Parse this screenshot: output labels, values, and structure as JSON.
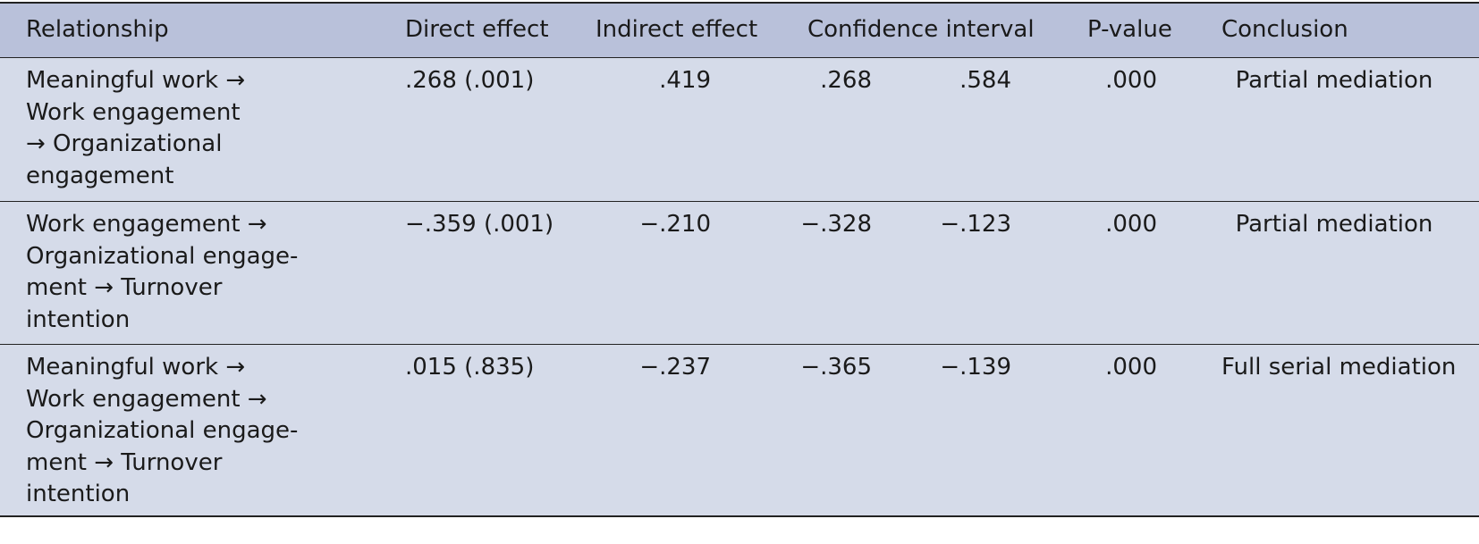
{
  "table": {
    "headers": {
      "relationship": "Relationship",
      "direct_effect": "Direct effect",
      "indirect_effect": "Indirect effect",
      "confidence_interval": "Confidence interval",
      "p_value": "P-value",
      "conclusion": "Conclusion"
    },
    "rows": [
      {
        "relationship_lines": [
          "Meaningful work →",
          "Work engagement",
          "→ Organizational",
          "engagement"
        ],
        "direct_effect": ".268 (.001)",
        "indirect_effect": ".419",
        "ci_lower": ".268",
        "ci_upper": ".584",
        "p_value": ".000",
        "conclusion": "Partial mediation"
      },
      {
        "relationship_lines": [
          "Work engagement →",
          "Organizational engage-",
          "ment → Turnover",
          "intention"
        ],
        "direct_effect": "−.359 (.001)",
        "indirect_effect": "−.210",
        "ci_lower": "−.328",
        "ci_upper": "−.123",
        "p_value": ".000",
        "conclusion": "Partial mediation"
      },
      {
        "relationship_lines": [
          "Meaningful work →",
          "Work engagement →",
          "Organizational engage-",
          "ment → Turnover",
          "intention"
        ],
        "direct_effect": ".015 (.835)",
        "indirect_effect": "−.237",
        "ci_lower": "−.365",
        "ci_upper": "−.139",
        "p_value": ".000",
        "conclusion": "Full serial mediation"
      }
    ]
  }
}
